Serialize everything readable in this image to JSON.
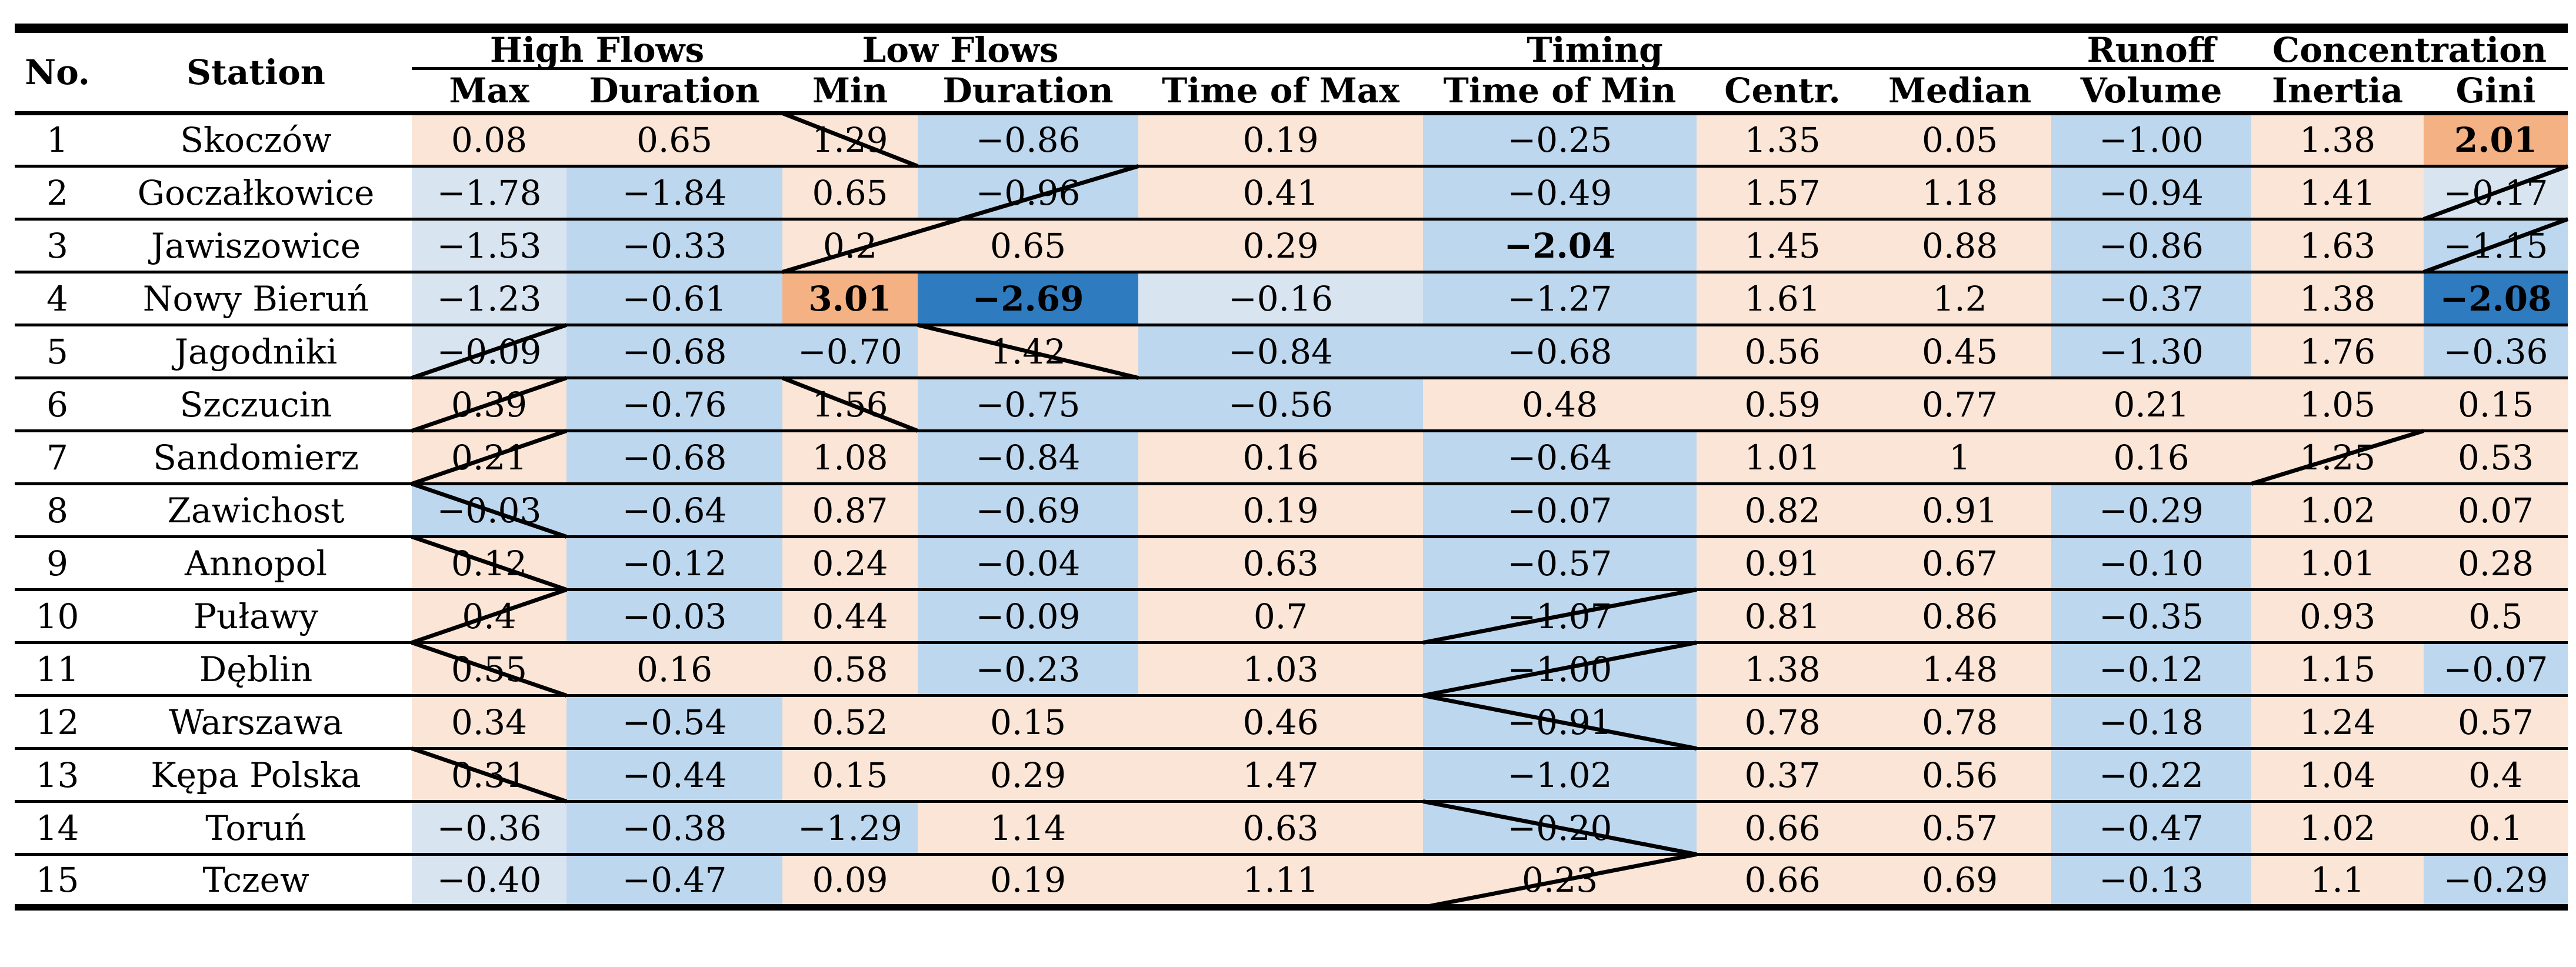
{
  "colors": {
    "p": "#fbe5d6",
    "o": "#f4b183",
    "lb": "#d9e4f1",
    "b": "#bdd7ee",
    "db": "#2e7bc0",
    "line": "#000000"
  },
  "table": {
    "corner_headers": {
      "no": "No.",
      "station": "Station"
    },
    "groups": [
      {
        "label": "High Flows",
        "span": 2
      },
      {
        "label": "Low Flows",
        "span": 2
      },
      {
        "label": "Timing",
        "span": 4
      },
      {
        "label": "Runoff",
        "span": 1
      },
      {
        "label": "Concentration",
        "span": 2
      }
    ],
    "subheaders": [
      "Max",
      "Duration",
      "Min",
      "Duration",
      "Time of Max",
      "Time of Min",
      "Centr.",
      "Median",
      "Volume",
      "Inertia",
      "Gini"
    ],
    "col_keys": [
      "hf_max",
      "hf_dur",
      "lf_min",
      "lf_dur",
      "t_max",
      "t_min",
      "centr",
      "median",
      "volume",
      "inertia",
      "gini"
    ],
    "rows": [
      {
        "no": "1",
        "station": "Skoczów",
        "values": [
          {
            "v": "0.08",
            "bg": "p"
          },
          {
            "v": "0.65",
            "bg": "p"
          },
          {
            "v": "1.29",
            "bg": "p"
          },
          {
            "v": "−0.86",
            "bg": "b"
          },
          {
            "v": "0.19",
            "bg": "p"
          },
          {
            "v": "−0.25",
            "bg": "b"
          },
          {
            "v": "1.35",
            "bg": "p"
          },
          {
            "v": "0.05",
            "bg": "p"
          },
          {
            "v": "−1.00",
            "bg": "b"
          },
          {
            "v": "1.38",
            "bg": "p"
          },
          {
            "v": "2.01",
            "bg": "o",
            "bold": true
          }
        ]
      },
      {
        "no": "2",
        "station": "Goczałkowice",
        "values": [
          {
            "v": "−1.78",
            "bg": "lb"
          },
          {
            "v": "−1.84",
            "bg": "b"
          },
          {
            "v": "0.65",
            "bg": "p"
          },
          {
            "v": "−0.96",
            "bg": "b"
          },
          {
            "v": "0.41",
            "bg": "p"
          },
          {
            "v": "−0.49",
            "bg": "b"
          },
          {
            "v": "1.57",
            "bg": "p"
          },
          {
            "v": "1.18",
            "bg": "p"
          },
          {
            "v": "−0.94",
            "bg": "b"
          },
          {
            "v": "1.41",
            "bg": "p"
          },
          {
            "v": "−0.17",
            "bg": "lb"
          }
        ]
      },
      {
        "no": "3",
        "station": "Jawiszowice",
        "values": [
          {
            "v": "−1.53",
            "bg": "lb"
          },
          {
            "v": "−0.33",
            "bg": "b"
          },
          {
            "v": "0.2",
            "bg": "p"
          },
          {
            "v": "0.65",
            "bg": "p"
          },
          {
            "v": "0.29",
            "bg": "p"
          },
          {
            "v": "−2.04",
            "bg": "b",
            "bold": true
          },
          {
            "v": "1.45",
            "bg": "p"
          },
          {
            "v": "0.88",
            "bg": "p"
          },
          {
            "v": "−0.86",
            "bg": "b"
          },
          {
            "v": "1.63",
            "bg": "p"
          },
          {
            "v": "−1.15",
            "bg": "b"
          }
        ]
      },
      {
        "no": "4",
        "station": "Nowy Bieruń",
        "values": [
          {
            "v": "−1.23",
            "bg": "lb"
          },
          {
            "v": "−0.61",
            "bg": "b"
          },
          {
            "v": "3.01",
            "bg": "o",
            "bold": true
          },
          {
            "v": "−2.69",
            "bg": "db",
            "bold": true
          },
          {
            "v": "−0.16",
            "bg": "lb"
          },
          {
            "v": "−1.27",
            "bg": "b"
          },
          {
            "v": "1.61",
            "bg": "p"
          },
          {
            "v": "1.2",
            "bg": "p"
          },
          {
            "v": "−0.37",
            "bg": "b"
          },
          {
            "v": "1.38",
            "bg": "p"
          },
          {
            "v": "−2.08",
            "bg": "db",
            "bold": true
          }
        ]
      },
      {
        "no": "5",
        "station": "Jagodniki",
        "values": [
          {
            "v": "−0.09",
            "bg": "lb"
          },
          {
            "v": "−0.68",
            "bg": "b"
          },
          {
            "v": "−0.70",
            "bg": "b"
          },
          {
            "v": "1.42",
            "bg": "p"
          },
          {
            "v": "−0.84",
            "bg": "b"
          },
          {
            "v": "−0.68",
            "bg": "b"
          },
          {
            "v": "0.56",
            "bg": "p"
          },
          {
            "v": "0.45",
            "bg": "p"
          },
          {
            "v": "−1.30",
            "bg": "b"
          },
          {
            "v": "1.76",
            "bg": "p"
          },
          {
            "v": "−0.36",
            "bg": "b"
          }
        ]
      },
      {
        "no": "6",
        "station": "Szczucin",
        "values": [
          {
            "v": "0.39",
            "bg": "p"
          },
          {
            "v": "−0.76",
            "bg": "b"
          },
          {
            "v": "1.56",
            "bg": "p"
          },
          {
            "v": "−0.75",
            "bg": "b"
          },
          {
            "v": "−0.56",
            "bg": "b"
          },
          {
            "v": "0.48",
            "bg": "p"
          },
          {
            "v": "0.59",
            "bg": "p"
          },
          {
            "v": "0.77",
            "bg": "p"
          },
          {
            "v": "0.21",
            "bg": "p"
          },
          {
            "v": "1.05",
            "bg": "p"
          },
          {
            "v": "0.15",
            "bg": "p"
          }
        ]
      },
      {
        "no": "7",
        "station": "Sandomierz",
        "values": [
          {
            "v": "0.21",
            "bg": "p"
          },
          {
            "v": "−0.68",
            "bg": "b"
          },
          {
            "v": "1.08",
            "bg": "p"
          },
          {
            "v": "−0.84",
            "bg": "b"
          },
          {
            "v": "0.16",
            "bg": "p"
          },
          {
            "v": "−0.64",
            "bg": "b"
          },
          {
            "v": "1.01",
            "bg": "p"
          },
          {
            "v": "1",
            "bg": "p"
          },
          {
            "v": "0.16",
            "bg": "p"
          },
          {
            "v": "1.25",
            "bg": "p"
          },
          {
            "v": "0.53",
            "bg": "p"
          }
        ]
      },
      {
        "no": "8",
        "station": "Zawichost",
        "values": [
          {
            "v": "−0.03",
            "bg": "b"
          },
          {
            "v": "−0.64",
            "bg": "b"
          },
          {
            "v": "0.87",
            "bg": "p"
          },
          {
            "v": "−0.69",
            "bg": "b"
          },
          {
            "v": "0.19",
            "bg": "p"
          },
          {
            "v": "−0.07",
            "bg": "b"
          },
          {
            "v": "0.82",
            "bg": "p"
          },
          {
            "v": "0.91",
            "bg": "p"
          },
          {
            "v": "−0.29",
            "bg": "b"
          },
          {
            "v": "1.02",
            "bg": "p"
          },
          {
            "v": "0.07",
            "bg": "p"
          }
        ]
      },
      {
        "no": "9",
        "station": "Annopol",
        "values": [
          {
            "v": "0.12",
            "bg": "p"
          },
          {
            "v": "−0.12",
            "bg": "b"
          },
          {
            "v": "0.24",
            "bg": "p"
          },
          {
            "v": "−0.04",
            "bg": "b"
          },
          {
            "v": "0.63",
            "bg": "p"
          },
          {
            "v": "−0.57",
            "bg": "b"
          },
          {
            "v": "0.91",
            "bg": "p"
          },
          {
            "v": "0.67",
            "bg": "p"
          },
          {
            "v": "−0.10",
            "bg": "b"
          },
          {
            "v": "1.01",
            "bg": "p"
          },
          {
            "v": "0.28",
            "bg": "p"
          }
        ]
      },
      {
        "no": "10",
        "station": "Puławy",
        "values": [
          {
            "v": "0.4",
            "bg": "p"
          },
          {
            "v": "−0.03",
            "bg": "b"
          },
          {
            "v": "0.44",
            "bg": "p"
          },
          {
            "v": "−0.09",
            "bg": "b"
          },
          {
            "v": "0.7",
            "bg": "p"
          },
          {
            "v": "−1.07",
            "bg": "b"
          },
          {
            "v": "0.81",
            "bg": "p"
          },
          {
            "v": "0.86",
            "bg": "p"
          },
          {
            "v": "−0.35",
            "bg": "b"
          },
          {
            "v": "0.93",
            "bg": "p"
          },
          {
            "v": "0.5",
            "bg": "p"
          }
        ]
      },
      {
        "no": "11",
        "station": "Dęblin",
        "values": [
          {
            "v": "0.55",
            "bg": "p"
          },
          {
            "v": "0.16",
            "bg": "p"
          },
          {
            "v": "0.58",
            "bg": "p"
          },
          {
            "v": "−0.23",
            "bg": "b"
          },
          {
            "v": "1.03",
            "bg": "p"
          },
          {
            "v": "−1.00",
            "bg": "b"
          },
          {
            "v": "1.38",
            "bg": "p"
          },
          {
            "v": "1.48",
            "bg": "p"
          },
          {
            "v": "−0.12",
            "bg": "b"
          },
          {
            "v": "1.15",
            "bg": "p"
          },
          {
            "v": "−0.07",
            "bg": "b"
          }
        ]
      },
      {
        "no": "12",
        "station": "Warszawa",
        "values": [
          {
            "v": "0.34",
            "bg": "p"
          },
          {
            "v": "−0.54",
            "bg": "b"
          },
          {
            "v": "0.52",
            "bg": "p"
          },
          {
            "v": "0.15",
            "bg": "p"
          },
          {
            "v": "0.46",
            "bg": "p"
          },
          {
            "v": "−0.91",
            "bg": "b"
          },
          {
            "v": "0.78",
            "bg": "p"
          },
          {
            "v": "0.78",
            "bg": "p"
          },
          {
            "v": "−0.18",
            "bg": "b"
          },
          {
            "v": "1.24",
            "bg": "p"
          },
          {
            "v": "0.57",
            "bg": "p"
          }
        ]
      },
      {
        "no": "13",
        "station": "Kępa Polska",
        "values": [
          {
            "v": "0.31",
            "bg": "p"
          },
          {
            "v": "−0.44",
            "bg": "b"
          },
          {
            "v": "0.15",
            "bg": "p"
          },
          {
            "v": "0.29",
            "bg": "p"
          },
          {
            "v": "1.47",
            "bg": "p"
          },
          {
            "v": "−1.02",
            "bg": "b"
          },
          {
            "v": "0.37",
            "bg": "p"
          },
          {
            "v": "0.56",
            "bg": "p"
          },
          {
            "v": "−0.22",
            "bg": "b"
          },
          {
            "v": "1.04",
            "bg": "p"
          },
          {
            "v": "0.4",
            "bg": "p"
          }
        ]
      },
      {
        "no": "14",
        "station": "Toruń",
        "values": [
          {
            "v": "−0.36",
            "bg": "lb"
          },
          {
            "v": "−0.38",
            "bg": "b"
          },
          {
            "v": "−1.29",
            "bg": "b"
          },
          {
            "v": "1.14",
            "bg": "p"
          },
          {
            "v": "0.63",
            "bg": "p"
          },
          {
            "v": "−0.20",
            "bg": "b"
          },
          {
            "v": "0.66",
            "bg": "p"
          },
          {
            "v": "0.57",
            "bg": "p"
          },
          {
            "v": "−0.47",
            "bg": "b"
          },
          {
            "v": "1.02",
            "bg": "p"
          },
          {
            "v": "0.1",
            "bg": "p"
          }
        ]
      },
      {
        "no": "15",
        "station": "Tczew",
        "values": [
          {
            "v": "−0.40",
            "bg": "lb"
          },
          {
            "v": "−0.47",
            "bg": "b"
          },
          {
            "v": "0.09",
            "bg": "p"
          },
          {
            "v": "0.19",
            "bg": "p"
          },
          {
            "v": "1.11",
            "bg": "p"
          },
          {
            "v": "0.23",
            "bg": "p"
          },
          {
            "v": "0.66",
            "bg": "p"
          },
          {
            "v": "0.69",
            "bg": "p"
          },
          {
            "v": "−0.13",
            "bg": "b"
          },
          {
            "v": "1.1",
            "bg": "p"
          },
          {
            "v": "−0.29",
            "bg": "b"
          }
        ]
      }
    ],
    "diagonal_marks": [
      {
        "dir": "down",
        "from": {
          "r": 1,
          "c": "lf_min"
        },
        "to": {
          "r": 1,
          "c": "lf_min"
        }
      },
      {
        "dir": "up",
        "from": {
          "r": 3,
          "c": "lf_min"
        },
        "to": {
          "r": 2,
          "c": "lf_dur"
        }
      },
      {
        "dir": "up",
        "from": {
          "r": 5,
          "c": "hf_max"
        },
        "to": {
          "r": 5,
          "c": "hf_max"
        }
      },
      {
        "dir": "up",
        "from": {
          "r": 6,
          "c": "hf_max"
        },
        "to": {
          "r": 6,
          "c": "hf_max"
        }
      },
      {
        "dir": "up",
        "from": {
          "r": 7,
          "c": "hf_max"
        },
        "to": {
          "r": 7,
          "c": "hf_max"
        }
      },
      {
        "dir": "down",
        "from": {
          "r": 8,
          "c": "hf_max"
        },
        "to": {
          "r": 8,
          "c": "hf_max"
        }
      },
      {
        "dir": "down",
        "from": {
          "r": 9,
          "c": "hf_max"
        },
        "to": {
          "r": 9,
          "c": "hf_max"
        }
      },
      {
        "dir": "up",
        "from": {
          "r": 10,
          "c": "hf_max"
        },
        "to": {
          "r": 10,
          "c": "hf_max"
        }
      },
      {
        "dir": "down",
        "from": {
          "r": 11,
          "c": "hf_max"
        },
        "to": {
          "r": 11,
          "c": "hf_max"
        }
      },
      {
        "dir": "down",
        "from": {
          "r": 13,
          "c": "hf_max"
        },
        "to": {
          "r": 13,
          "c": "hf_max"
        }
      },
      {
        "dir": "down",
        "from": {
          "r": 6,
          "c": "lf_min"
        },
        "to": {
          "r": 6,
          "c": "lf_min"
        }
      },
      {
        "dir": "down",
        "from": {
          "r": 5,
          "c": "lf_dur"
        },
        "to": {
          "r": 5,
          "c": "lf_dur"
        }
      },
      {
        "dir": "up",
        "from": {
          "r": 10,
          "c": "t_min"
        },
        "to": {
          "r": 10,
          "c": "t_min"
        }
      },
      {
        "dir": "up",
        "from": {
          "r": 11,
          "c": "t_min"
        },
        "to": {
          "r": 11,
          "c": "t_min"
        }
      },
      {
        "dir": "down",
        "from": {
          "r": 12,
          "c": "t_min"
        },
        "to": {
          "r": 12,
          "c": "t_min"
        }
      },
      {
        "dir": "down",
        "from": {
          "r": 14,
          "c": "t_min"
        },
        "to": {
          "r": 14,
          "c": "t_min"
        }
      },
      {
        "dir": "up",
        "from": {
          "r": 15,
          "c": "t_min"
        },
        "to": {
          "r": 15,
          "c": "t_min"
        }
      },
      {
        "dir": "up",
        "from": {
          "r": 7,
          "c": "inertia"
        },
        "to": {
          "r": 7,
          "c": "inertia"
        }
      },
      {
        "dir": "up",
        "from": {
          "r": 2,
          "c": "gini"
        },
        "to": {
          "r": 2,
          "c": "gini"
        }
      },
      {
        "dir": "up",
        "from": {
          "r": 3,
          "c": "gini"
        },
        "to": {
          "r": 3,
          "c": "gini"
        }
      }
    ]
  }
}
